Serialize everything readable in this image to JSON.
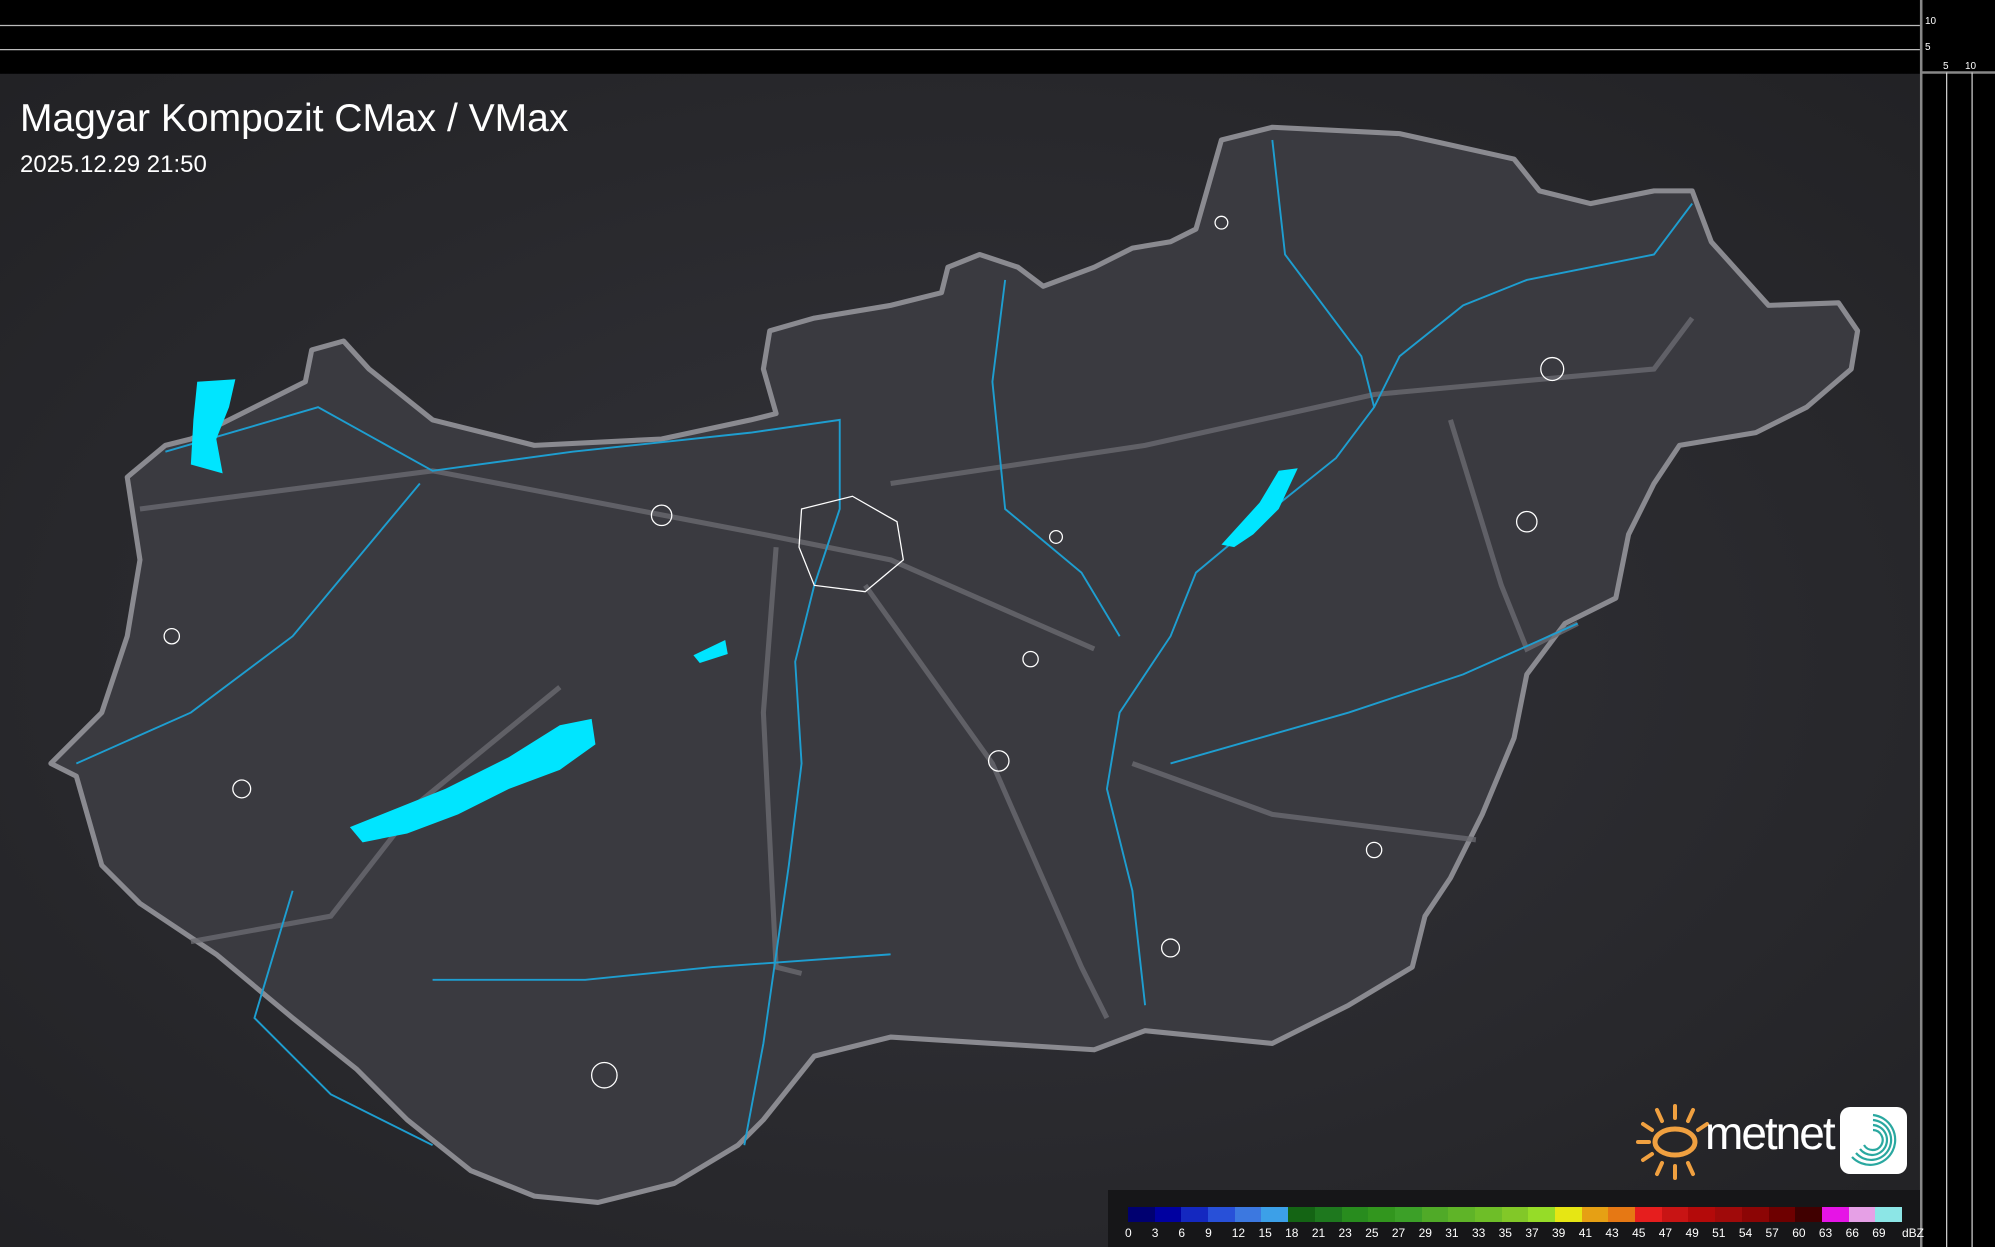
{
  "header": {
    "title": "Magyar Kompozit CMax / VMax",
    "timestamp": "2025.12.29 21:50"
  },
  "side_scale": {
    "top_ticks": [
      "10",
      "5"
    ],
    "right_ticks": [
      "5",
      "10"
    ]
  },
  "legend": {
    "unit": "dBZ",
    "labels": [
      "0",
      "3",
      "6",
      "9",
      "12",
      "15",
      "18",
      "21",
      "23",
      "25",
      "27",
      "29",
      "31",
      "33",
      "35",
      "37",
      "39",
      "41",
      "43",
      "45",
      "47",
      "49",
      "51",
      "54",
      "57",
      "60",
      "63",
      "66",
      "69"
    ],
    "colors": [
      "#000070",
      "#0000a0",
      "#1428c0",
      "#2850d8",
      "#3c78e0",
      "#3ca0e8",
      "#146414",
      "#1e781e",
      "#288c1e",
      "#32961e",
      "#3ca028",
      "#50aa28",
      "#5fb428",
      "#6ebe28",
      "#82c828",
      "#96dc28",
      "#e6e614",
      "#e6a014",
      "#e67814",
      "#e61e1e",
      "#c81414",
      "#b40a0a",
      "#a00a0a",
      "#8c0505",
      "#6e0000",
      "#400000",
      "#e614e6",
      "#e6a0e6",
      "#8ce6e6"
    ]
  },
  "logo": {
    "brand": "metnet"
  },
  "colors": {
    "lake": "#00e5ff",
    "river": "#1e9ed0",
    "border": "#8a8a90",
    "land": "#3a3a40",
    "background": "#2a2a2d"
  }
}
